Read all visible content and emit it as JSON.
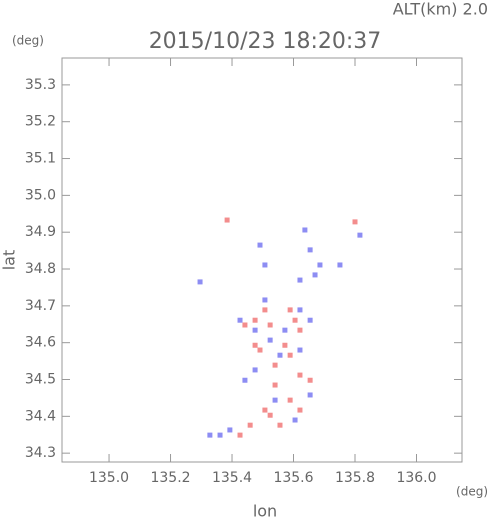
{
  "chart_data": {
    "type": "scatter",
    "title": "2015/10/23 18:20:37",
    "subtitle": "ALT(km) 2.0",
    "y_unit": "(deg)",
    "x_unit": "(deg)",
    "x_label": "lon",
    "y_label": "lat",
    "xlim": [
      134.847,
      136.148
    ],
    "ylim": [
      34.276,
      35.373
    ],
    "xticks": [
      {
        "value": 135,
        "label": "135.0"
      },
      135.2,
      135.4,
      135.6,
      135.8,
      {
        "value": 136,
        "label": "136.0"
      }
    ],
    "yticks": [
      34.3,
      34.4,
      34.5,
      34.6,
      34.7,
      34.8,
      34.9,
      {
        "value": 35,
        "label": "35.0"
      },
      35.1,
      35.2,
      35.3
    ],
    "series": [
      {
        "color": "#f07070",
        "x": [
          135.384,
          135.8,
          135.507,
          135.475,
          135.524,
          135.589,
          135.621,
          135.572,
          135.442,
          135.491,
          135.621,
          135.54,
          135.589,
          135.507,
          135.621,
          135.556,
          135.459,
          135.426,
          135.524,
          135.475,
          135.589,
          135.654,
          135.54,
          135.605
        ],
        "y": [
          34.933,
          34.928,
          34.689,
          34.661,
          34.648,
          34.689,
          34.634,
          34.593,
          34.648,
          34.58,
          34.512,
          34.485,
          34.444,
          34.417,
          34.417,
          34.376,
          34.376,
          34.349,
          34.403,
          34.593,
          34.566,
          34.498,
          34.539,
          34.661
        ]
      },
      {
        "color": "#7070f0",
        "x": [
          135.491,
          135.507,
          135.654,
          135.686,
          135.621,
          135.67,
          135.751,
          135.621,
          135.654,
          135.572,
          135.475,
          135.524,
          135.621,
          135.654,
          135.54,
          135.605,
          135.393,
          135.328,
          135.361,
          135.475,
          135.442,
          135.556,
          135.507,
          135.426,
          135.296,
          135.637,
          135.816
        ],
        "y": [
          34.865,
          34.811,
          34.852,
          34.811,
          34.77,
          34.784,
          34.811,
          34.689,
          34.661,
          34.634,
          34.634,
          34.607,
          34.58,
          34.458,
          34.444,
          34.39,
          34.363,
          34.349,
          34.349,
          34.526,
          34.498,
          34.566,
          34.716,
          34.661,
          34.765,
          34.906,
          34.892
        ]
      }
    ]
  }
}
